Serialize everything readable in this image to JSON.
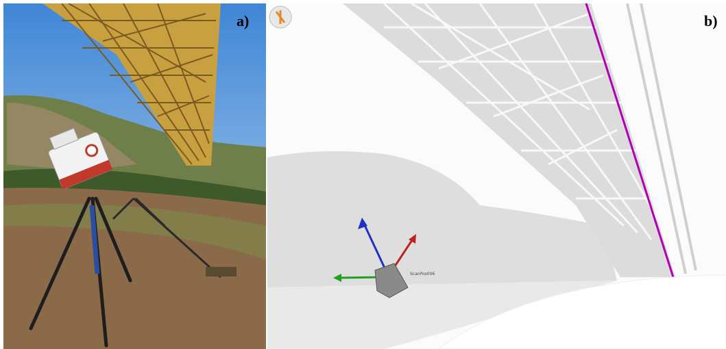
{
  "panels": [
    {
      "label": "a)"
    },
    {
      "label": "b)",
      "scan_position": "ScanPos006"
    }
  ]
}
